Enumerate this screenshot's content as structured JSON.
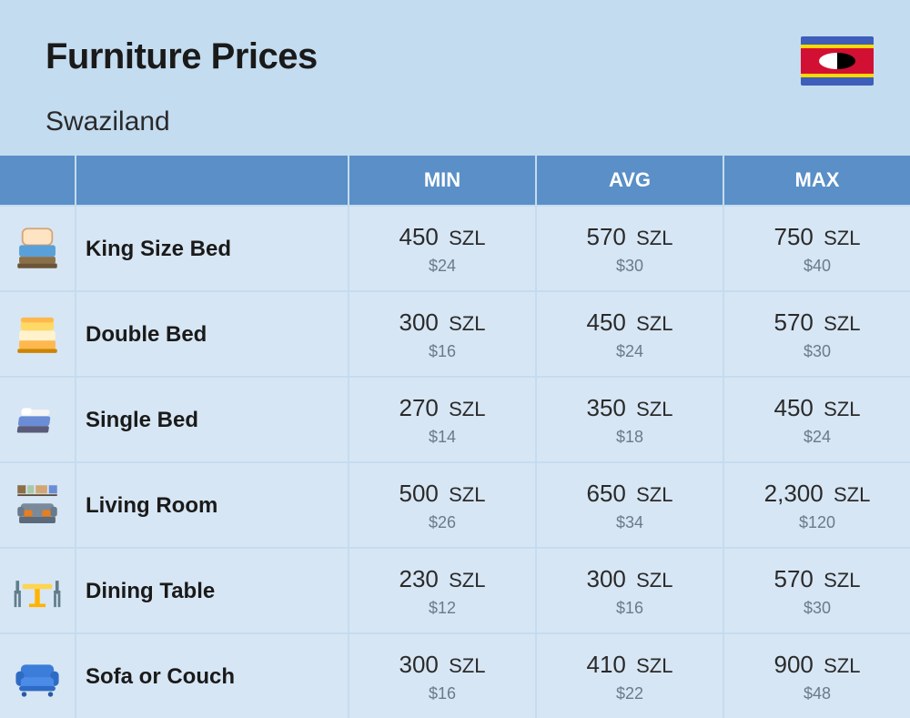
{
  "header": {
    "title": "Furniture Prices",
    "subtitle": "Swaziland"
  },
  "columns": {
    "min": "MIN",
    "avg": "AVG",
    "max": "MAX"
  },
  "currency_label": "SZL",
  "colors": {
    "page_bg": "#c4dcf0",
    "header_bg": "#5a8fc7",
    "header_text": "#ffffff",
    "cell_bg": "#d7e6f4",
    "label_text": "#1a1a1a",
    "price_text": "#2a2a2a",
    "usd_text": "#6b7a8a"
  },
  "rows": [
    {
      "icon": "king-bed",
      "label": "King Size Bed",
      "min": {
        "szl": "450",
        "usd": "$24"
      },
      "avg": {
        "szl": "570",
        "usd": "$30"
      },
      "max": {
        "szl": "750",
        "usd": "$40"
      }
    },
    {
      "icon": "double-bed",
      "label": "Double Bed",
      "min": {
        "szl": "300",
        "usd": "$16"
      },
      "avg": {
        "szl": "450",
        "usd": "$24"
      },
      "max": {
        "szl": "570",
        "usd": "$30"
      }
    },
    {
      "icon": "single-bed",
      "label": "Single Bed",
      "min": {
        "szl": "270",
        "usd": "$14"
      },
      "avg": {
        "szl": "350",
        "usd": "$18"
      },
      "max": {
        "szl": "450",
        "usd": "$24"
      }
    },
    {
      "icon": "living-room",
      "label": "Living Room",
      "min": {
        "szl": "500",
        "usd": "$26"
      },
      "avg": {
        "szl": "650",
        "usd": "$34"
      },
      "max": {
        "szl": "2,300",
        "usd": "$120"
      }
    },
    {
      "icon": "dining-table",
      "label": "Dining Table",
      "min": {
        "szl": "230",
        "usd": "$12"
      },
      "avg": {
        "szl": "300",
        "usd": "$16"
      },
      "max": {
        "szl": "570",
        "usd": "$30"
      }
    },
    {
      "icon": "sofa",
      "label": "Sofa or Couch",
      "min": {
        "szl": "300",
        "usd": "$16"
      },
      "avg": {
        "szl": "410",
        "usd": "$22"
      },
      "max": {
        "szl": "900",
        "usd": "$48"
      }
    }
  ]
}
